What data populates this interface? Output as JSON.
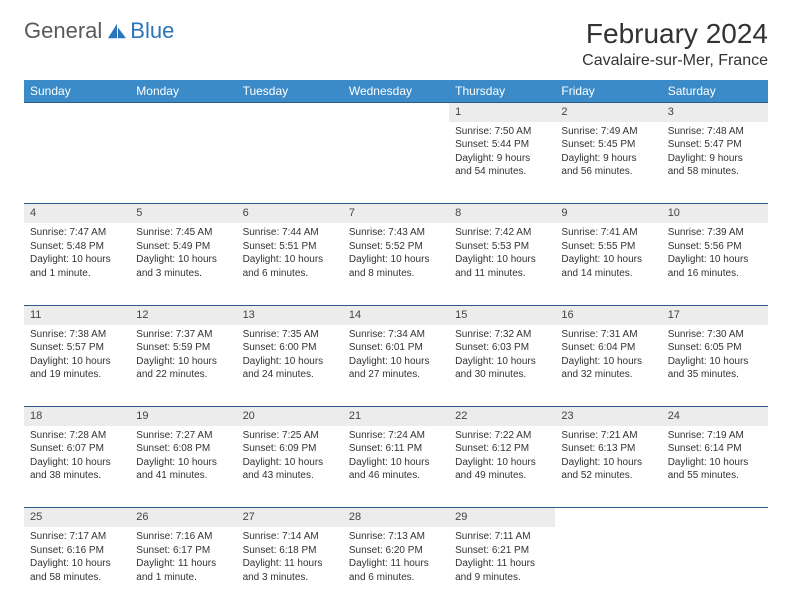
{
  "brand": {
    "part1": "General",
    "part2": "Blue"
  },
  "title": {
    "month": "February 2024",
    "location": "Cavalaire-sur-Mer, France"
  },
  "colors": {
    "header_bg": "#3b8bc9",
    "header_text": "#ffffff",
    "daynum_bg": "#ececec",
    "row_border": "#2a5a85",
    "brand_gray": "#5a5a5a",
    "brand_blue": "#2a75bb",
    "text": "#333333"
  },
  "day_headers": [
    "Sunday",
    "Monday",
    "Tuesday",
    "Wednesday",
    "Thursday",
    "Friday",
    "Saturday"
  ],
  "weeks": [
    {
      "nums": [
        "",
        "",
        "",
        "",
        "1",
        "2",
        "3"
      ],
      "cells": [
        null,
        null,
        null,
        null,
        {
          "sunrise": "Sunrise: 7:50 AM",
          "sunset": "Sunset: 5:44 PM",
          "day1": "Daylight: 9 hours",
          "day2": "and 54 minutes."
        },
        {
          "sunrise": "Sunrise: 7:49 AM",
          "sunset": "Sunset: 5:45 PM",
          "day1": "Daylight: 9 hours",
          "day2": "and 56 minutes."
        },
        {
          "sunrise": "Sunrise: 7:48 AM",
          "sunset": "Sunset: 5:47 PM",
          "day1": "Daylight: 9 hours",
          "day2": "and 58 minutes."
        }
      ]
    },
    {
      "nums": [
        "4",
        "5",
        "6",
        "7",
        "8",
        "9",
        "10"
      ],
      "cells": [
        {
          "sunrise": "Sunrise: 7:47 AM",
          "sunset": "Sunset: 5:48 PM",
          "day1": "Daylight: 10 hours",
          "day2": "and 1 minute."
        },
        {
          "sunrise": "Sunrise: 7:45 AM",
          "sunset": "Sunset: 5:49 PM",
          "day1": "Daylight: 10 hours",
          "day2": "and 3 minutes."
        },
        {
          "sunrise": "Sunrise: 7:44 AM",
          "sunset": "Sunset: 5:51 PM",
          "day1": "Daylight: 10 hours",
          "day2": "and 6 minutes."
        },
        {
          "sunrise": "Sunrise: 7:43 AM",
          "sunset": "Sunset: 5:52 PM",
          "day1": "Daylight: 10 hours",
          "day2": "and 8 minutes."
        },
        {
          "sunrise": "Sunrise: 7:42 AM",
          "sunset": "Sunset: 5:53 PM",
          "day1": "Daylight: 10 hours",
          "day2": "and 11 minutes."
        },
        {
          "sunrise": "Sunrise: 7:41 AM",
          "sunset": "Sunset: 5:55 PM",
          "day1": "Daylight: 10 hours",
          "day2": "and 14 minutes."
        },
        {
          "sunrise": "Sunrise: 7:39 AM",
          "sunset": "Sunset: 5:56 PM",
          "day1": "Daylight: 10 hours",
          "day2": "and 16 minutes."
        }
      ]
    },
    {
      "nums": [
        "11",
        "12",
        "13",
        "14",
        "15",
        "16",
        "17"
      ],
      "cells": [
        {
          "sunrise": "Sunrise: 7:38 AM",
          "sunset": "Sunset: 5:57 PM",
          "day1": "Daylight: 10 hours",
          "day2": "and 19 minutes."
        },
        {
          "sunrise": "Sunrise: 7:37 AM",
          "sunset": "Sunset: 5:59 PM",
          "day1": "Daylight: 10 hours",
          "day2": "and 22 minutes."
        },
        {
          "sunrise": "Sunrise: 7:35 AM",
          "sunset": "Sunset: 6:00 PM",
          "day1": "Daylight: 10 hours",
          "day2": "and 24 minutes."
        },
        {
          "sunrise": "Sunrise: 7:34 AM",
          "sunset": "Sunset: 6:01 PM",
          "day1": "Daylight: 10 hours",
          "day2": "and 27 minutes."
        },
        {
          "sunrise": "Sunrise: 7:32 AM",
          "sunset": "Sunset: 6:03 PM",
          "day1": "Daylight: 10 hours",
          "day2": "and 30 minutes."
        },
        {
          "sunrise": "Sunrise: 7:31 AM",
          "sunset": "Sunset: 6:04 PM",
          "day1": "Daylight: 10 hours",
          "day2": "and 32 minutes."
        },
        {
          "sunrise": "Sunrise: 7:30 AM",
          "sunset": "Sunset: 6:05 PM",
          "day1": "Daylight: 10 hours",
          "day2": "and 35 minutes."
        }
      ]
    },
    {
      "nums": [
        "18",
        "19",
        "20",
        "21",
        "22",
        "23",
        "24"
      ],
      "cells": [
        {
          "sunrise": "Sunrise: 7:28 AM",
          "sunset": "Sunset: 6:07 PM",
          "day1": "Daylight: 10 hours",
          "day2": "and 38 minutes."
        },
        {
          "sunrise": "Sunrise: 7:27 AM",
          "sunset": "Sunset: 6:08 PM",
          "day1": "Daylight: 10 hours",
          "day2": "and 41 minutes."
        },
        {
          "sunrise": "Sunrise: 7:25 AM",
          "sunset": "Sunset: 6:09 PM",
          "day1": "Daylight: 10 hours",
          "day2": "and 43 minutes."
        },
        {
          "sunrise": "Sunrise: 7:24 AM",
          "sunset": "Sunset: 6:11 PM",
          "day1": "Daylight: 10 hours",
          "day2": "and 46 minutes."
        },
        {
          "sunrise": "Sunrise: 7:22 AM",
          "sunset": "Sunset: 6:12 PM",
          "day1": "Daylight: 10 hours",
          "day2": "and 49 minutes."
        },
        {
          "sunrise": "Sunrise: 7:21 AM",
          "sunset": "Sunset: 6:13 PM",
          "day1": "Daylight: 10 hours",
          "day2": "and 52 minutes."
        },
        {
          "sunrise": "Sunrise: 7:19 AM",
          "sunset": "Sunset: 6:14 PM",
          "day1": "Daylight: 10 hours",
          "day2": "and 55 minutes."
        }
      ]
    },
    {
      "nums": [
        "25",
        "26",
        "27",
        "28",
        "29",
        "",
        ""
      ],
      "cells": [
        {
          "sunrise": "Sunrise: 7:17 AM",
          "sunset": "Sunset: 6:16 PM",
          "day1": "Daylight: 10 hours",
          "day2": "and 58 minutes."
        },
        {
          "sunrise": "Sunrise: 7:16 AM",
          "sunset": "Sunset: 6:17 PM",
          "day1": "Daylight: 11 hours",
          "day2": "and 1 minute."
        },
        {
          "sunrise": "Sunrise: 7:14 AM",
          "sunset": "Sunset: 6:18 PM",
          "day1": "Daylight: 11 hours",
          "day2": "and 3 minutes."
        },
        {
          "sunrise": "Sunrise: 7:13 AM",
          "sunset": "Sunset: 6:20 PM",
          "day1": "Daylight: 11 hours",
          "day2": "and 6 minutes."
        },
        {
          "sunrise": "Sunrise: 7:11 AM",
          "sunset": "Sunset: 6:21 PM",
          "day1": "Daylight: 11 hours",
          "day2": "and 9 minutes."
        },
        null,
        null
      ]
    }
  ]
}
